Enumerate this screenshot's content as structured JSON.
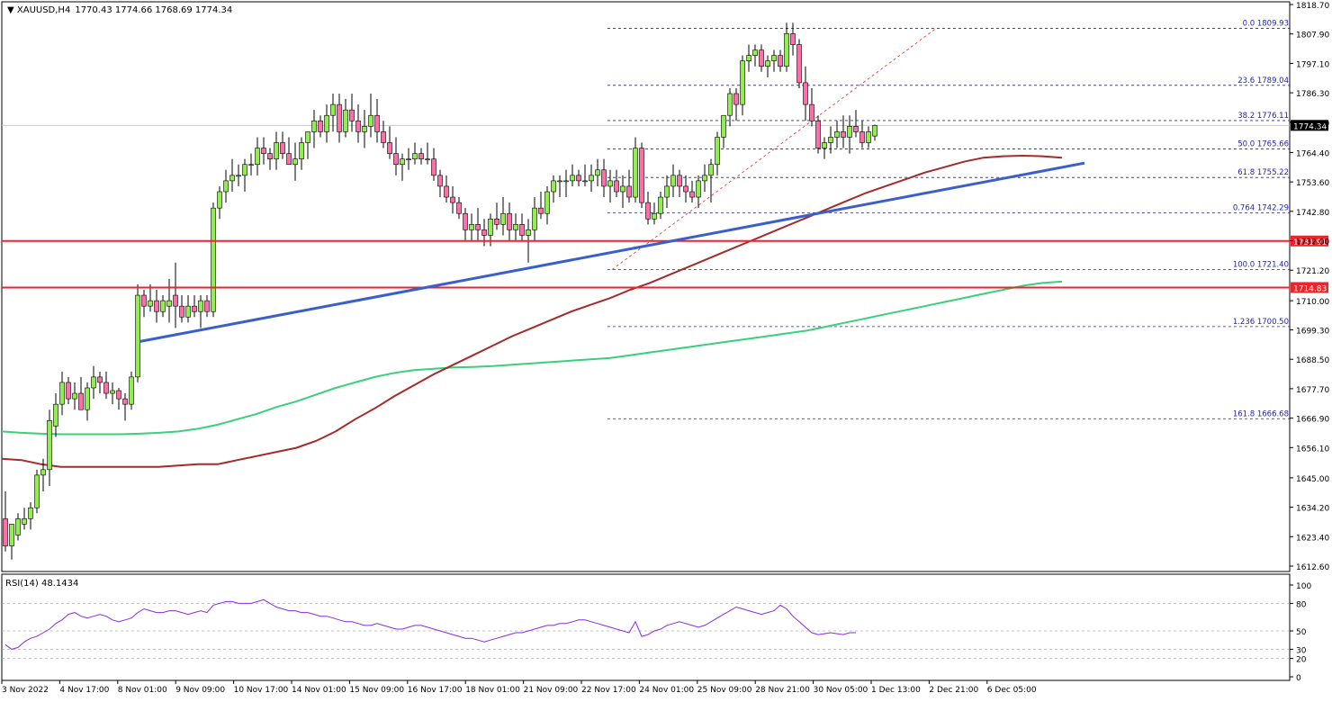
{
  "header": {
    "symbol_tf": "XAUUSD,H4",
    "ohlc": "1770.43 1774.66 1768.69 1774.34"
  },
  "rsi": {
    "label": "RSI(14) 48.1434",
    "scale_labels": [
      "100",
      "80",
      "50",
      "30",
      "20",
      "0"
    ]
  },
  "colors": {
    "bull": "#90ee50",
    "bear": "#ff6ea6",
    "wick": "#000000",
    "ma_fast": "#a52a2a",
    "ma_slow": "#3ad07a",
    "trendline": "#3a5fcd",
    "hline": "#e8262b",
    "fib": "#2424a8",
    "rsi_line": "#8a2be2"
  },
  "chart_data": {
    "type": "candlestick",
    "symbol": "XAUUSD",
    "timeframe": "H4",
    "ylim": [
      1612.6,
      1818.7
    ],
    "y_ticks": [
      "1818.70",
      "1807.90",
      "1797.10",
      "1786.30",
      "1775.50",
      "1764.40",
      "1753.60",
      "1742.80",
      "1732.00",
      "1721.20",
      "1710.00",
      "1699.30",
      "1688.50",
      "1677.70",
      "1666.90",
      "1656.10",
      "1645.00",
      "1634.20",
      "1623.40",
      "1612.60"
    ],
    "x_labels": [
      "3 Nov 2022",
      "4 Nov 17:00",
      "8 Nov 01:00",
      "9 Nov 09:00",
      "10 Nov 17:00",
      "14 Nov 01:00",
      "15 Nov 09:00",
      "16 Nov 17:00",
      "18 Nov 01:00",
      "21 Nov 09:00",
      "22 Nov 17:00",
      "24 Nov 01:00",
      "25 Nov 09:00",
      "28 Nov 21:00",
      "30 Nov 05:00",
      "1 Dec 13:00",
      "2 Dec 21:00",
      "6 Dec 05:00"
    ],
    "current_price": "1774.34",
    "hlines": [
      {
        "price": 1731.91,
        "label": "1731.91"
      },
      {
        "price": 1714.83,
        "label": "1714.83"
      }
    ],
    "fibonacci": [
      {
        "level": "0.0",
        "price": 1809.93,
        "label": "0.0 1809.93"
      },
      {
        "level": "23.6",
        "price": 1789.04,
        "label": "23.6 1789.04"
      },
      {
        "level": "38.2",
        "price": 1776.11,
        "label": "38.2 1776.11"
      },
      {
        "level": "50.0",
        "price": 1765.66,
        "label": "50.0 1765.66"
      },
      {
        "level": "61.8",
        "price": 1755.22,
        "label": "61.8 1755.22"
      },
      {
        "level": "76.4",
        "price": 1742.29,
        "label": "0.764 1742.29"
      },
      {
        "level": "100.0",
        "price": 1721.4,
        "label": "100.0 1721.40"
      },
      {
        "level": "123.6",
        "price": 1700.5,
        "label": "1.236 1700.50"
      },
      {
        "level": "161.8",
        "price": 1666.68,
        "label": "161.8 1666.68"
      }
    ],
    "trendline": {
      "from": [
        0,
        1695.0
      ],
      "to": [
        100,
        1758.0
      ]
    },
    "ma_fast": [
      1652.0,
      1651.5,
      1650.0,
      1649.0,
      1649.0,
      1649.0,
      1649.0,
      1649.0,
      1649.0,
      1649.5,
      1650.0,
      1650.0,
      1651.5,
      1653.0,
      1654.5,
      1656.0,
      1658.5,
      1662.0,
      1666.5,
      1670.5,
      1675.0,
      1679.0,
      1683.0,
      1686.5,
      1690.0,
      1693.5,
      1697.0,
      1700.0,
      1703.0,
      1706.0,
      1708.5,
      1711.0,
      1714.0,
      1716.5,
      1719.5,
      1722.5,
      1725.5,
      1728.5,
      1731.5,
      1734.5,
      1737.5,
      1740.5,
      1743.5,
      1746.5,
      1749.5,
      1752.0,
      1754.5,
      1757.0,
      1759.0,
      1761.0,
      1762.5,
      1763.0,
      1763.2,
      1763.0,
      1762.5
    ],
    "ma_slow": [
      1662.0,
      1661.5,
      1661.2,
      1661.0,
      1661.0,
      1661.0,
      1661.0,
      1661.2,
      1661.5,
      1662.0,
      1663.0,
      1664.5,
      1666.5,
      1668.5,
      1671.0,
      1673.0,
      1675.5,
      1678.0,
      1680.0,
      1682.0,
      1683.5,
      1684.5,
      1685.0,
      1685.5,
      1685.7,
      1686.0,
      1686.5,
      1687.0,
      1687.5,
      1688.0,
      1688.5,
      1689.0,
      1690.0,
      1691.0,
      1692.0,
      1693.0,
      1694.0,
      1695.0,
      1696.0,
      1697.0,
      1698.0,
      1699.0,
      1700.5,
      1702.0,
      1703.5,
      1705.0,
      1706.5,
      1708.0,
      1709.5,
      1711.0,
      1712.5,
      1714.0,
      1715.5,
      1716.5,
      1717.0
    ],
    "candles": [
      [
        1630,
        1640,
        1618,
        1620
      ],
      [
        1620,
        1628,
        1615,
        1628
      ],
      [
        1624,
        1632,
        1622,
        1630
      ],
      [
        1628,
        1634,
        1626,
        1630
      ],
      [
        1630,
        1636,
        1626,
        1634
      ],
      [
        1634,
        1648,
        1632,
        1646
      ],
      [
        1646,
        1652,
        1640,
        1648
      ],
      [
        1648,
        1670,
        1642,
        1666
      ],
      [
        1664,
        1676,
        1660,
        1672
      ],
      [
        1672,
        1684,
        1668,
        1680
      ],
      [
        1680,
        1682,
        1672,
        1674
      ],
      [
        1674,
        1680,
        1670,
        1676
      ],
      [
        1676,
        1682,
        1670,
        1670
      ],
      [
        1670,
        1680,
        1666,
        1678
      ],
      [
        1678,
        1686,
        1674,
        1682
      ],
      [
        1682,
        1684,
        1676,
        1680
      ],
      [
        1680,
        1684,
        1674,
        1676
      ],
      [
        1676,
        1680,
        1672,
        1677
      ],
      [
        1677,
        1678,
        1670,
        1674
      ],
      [
        1674,
        1676,
        1666,
        1672
      ],
      [
        1672,
        1684,
        1670,
        1682
      ],
      [
        1682,
        1716,
        1680,
        1712
      ],
      [
        1712,
        1714,
        1704,
        1708
      ],
      [
        1708,
        1716,
        1706,
        1710
      ],
      [
        1710,
        1714,
        1702,
        1706
      ],
      [
        1706,
        1712,
        1704,
        1710
      ],
      [
        1708,
        1718,
        1702,
        1710
      ],
      [
        1712,
        1724,
        1700,
        1708
      ],
      [
        1708,
        1712,
        1702,
        1704
      ],
      [
        1704,
        1712,
        1702,
        1708
      ],
      [
        1708,
        1712,
        1704,
        1706
      ],
      [
        1706,
        1712,
        1700,
        1710
      ],
      [
        1710,
        1712,
        1704,
        1706
      ],
      [
        1706,
        1746,
        1704,
        1744
      ],
      [
        1744,
        1752,
        1740,
        1750
      ],
      [
        1750,
        1758,
        1746,
        1754
      ],
      [
        1754,
        1762,
        1750,
        1756
      ],
      [
        1756,
        1760,
        1752,
        1756
      ],
      [
        1756,
        1762,
        1750,
        1760
      ],
      [
        1760,
        1764,
        1756,
        1760
      ],
      [
        1760,
        1770,
        1756,
        1766
      ],
      [
        1766,
        1770,
        1760,
        1764
      ],
      [
        1764,
        1766,
        1758,
        1762
      ],
      [
        1762,
        1772,
        1758,
        1768
      ],
      [
        1768,
        1772,
        1762,
        1764
      ],
      [
        1764,
        1770,
        1760,
        1760
      ],
      [
        1760,
        1768,
        1754,
        1762
      ],
      [
        1762,
        1770,
        1758,
        1768
      ],
      [
        1768,
        1772,
        1762,
        1772
      ],
      [
        1772,
        1780,
        1766,
        1776
      ],
      [
        1776,
        1778,
        1770,
        1772
      ],
      [
        1772,
        1782,
        1768,
        1778
      ],
      [
        1778,
        1786,
        1772,
        1782
      ],
      [
        1782,
        1786,
        1768,
        1772
      ],
      [
        1772,
        1784,
        1770,
        1780
      ],
      [
        1780,
        1786,
        1772,
        1776
      ],
      [
        1776,
        1782,
        1768,
        1772
      ],
      [
        1772,
        1780,
        1766,
        1774
      ],
      [
        1774,
        1786,
        1770,
        1778
      ],
      [
        1778,
        1784,
        1768,
        1772
      ],
      [
        1772,
        1776,
        1766,
        1768
      ],
      [
        1768,
        1774,
        1762,
        1764
      ],
      [
        1764,
        1770,
        1756,
        1760
      ],
      [
        1760,
        1764,
        1754,
        1762
      ],
      [
        1762,
        1766,
        1758,
        1762
      ],
      [
        1762,
        1768,
        1760,
        1764
      ],
      [
        1764,
        1766,
        1760,
        1762
      ],
      [
        1762,
        1768,
        1760,
        1762
      ],
      [
        1762,
        1766,
        1754,
        1756
      ],
      [
        1756,
        1758,
        1748,
        1752
      ],
      [
        1752,
        1756,
        1746,
        1748
      ],
      [
        1748,
        1752,
        1742,
        1746
      ],
      [
        1746,
        1748,
        1740,
        1742
      ],
      [
        1742,
        1744,
        1732,
        1736
      ],
      [
        1736,
        1742,
        1732,
        1738
      ],
      [
        1738,
        1744,
        1732,
        1736
      ],
      [
        1736,
        1740,
        1730,
        1734
      ],
      [
        1734,
        1742,
        1730,
        1740
      ],
      [
        1740,
        1746,
        1736,
        1738
      ],
      [
        1738,
        1748,
        1734,
        1742
      ],
      [
        1742,
        1746,
        1732,
        1736
      ],
      [
        1736,
        1742,
        1732,
        1738
      ],
      [
        1738,
        1742,
        1732,
        1734
      ],
      [
        1734,
        1740,
        1724,
        1736
      ],
      [
        1736,
        1748,
        1732,
        1744
      ],
      [
        1744,
        1750,
        1740,
        1742
      ],
      [
        1742,
        1752,
        1738,
        1750
      ],
      [
        1750,
        1756,
        1746,
        1754
      ],
      [
        1754,
        1756,
        1748,
        1754
      ],
      [
        1754,
        1758,
        1748,
        1754
      ],
      [
        1754,
        1760,
        1752,
        1756
      ],
      [
        1756,
        1758,
        1752,
        1754
      ],
      [
        1754,
        1760,
        1752,
        1754
      ],
      [
        1754,
        1760,
        1750,
        1756
      ],
      [
        1756,
        1762,
        1752,
        1758
      ],
      [
        1758,
        1762,
        1748,
        1752
      ],
      [
        1752,
        1758,
        1746,
        1754
      ],
      [
        1754,
        1758,
        1748,
        1750
      ],
      [
        1750,
        1756,
        1744,
        1752
      ],
      [
        1752,
        1758,
        1746,
        1748
      ],
      [
        1748,
        1770,
        1746,
        1766
      ],
      [
        1766,
        1768,
        1744,
        1746
      ],
      [
        1746,
        1750,
        1738,
        1740
      ],
      [
        1740,
        1746,
        1738,
        1742
      ],
      [
        1742,
        1750,
        1740,
        1748
      ],
      [
        1748,
        1756,
        1744,
        1752
      ],
      [
        1752,
        1760,
        1748,
        1756
      ],
      [
        1756,
        1758,
        1748,
        1752
      ],
      [
        1752,
        1756,
        1746,
        1750
      ],
      [
        1750,
        1754,
        1746,
        1748
      ],
      [
        1748,
        1756,
        1744,
        1754
      ],
      [
        1754,
        1760,
        1750,
        1756
      ],
      [
        1756,
        1762,
        1746,
        1760
      ],
      [
        1760,
        1772,
        1756,
        1770
      ],
      [
        1770,
        1778,
        1766,
        1778
      ],
      [
        1778,
        1788,
        1774,
        1786
      ],
      [
        1786,
        1788,
        1776,
        1782
      ],
      [
        1782,
        1800,
        1778,
        1798
      ],
      [
        1798,
        1804,
        1794,
        1800
      ],
      [
        1800,
        1804,
        1796,
        1802
      ],
      [
        1802,
        1804,
        1794,
        1796
      ],
      [
        1796,
        1800,
        1792,
        1798
      ],
      [
        1798,
        1802,
        1794,
        1800
      ],
      [
        1800,
        1802,
        1794,
        1796
      ],
      [
        1796,
        1812,
        1794,
        1808
      ],
      [
        1808,
        1812,
        1800,
        1804
      ],
      [
        1804,
        1806,
        1788,
        1790
      ],
      [
        1790,
        1796,
        1776,
        1782
      ],
      [
        1782,
        1788,
        1774,
        1776
      ],
      [
        1776,
        1778,
        1764,
        1766
      ],
      [
        1766,
        1770,
        1762,
        1768
      ],
      [
        1768,
        1774,
        1764,
        1770
      ],
      [
        1770,
        1776,
        1766,
        1772
      ],
      [
        1772,
        1778,
        1766,
        1770
      ],
      [
        1770,
        1778,
        1764,
        1774
      ],
      [
        1774,
        1780,
        1770,
        1772
      ],
      [
        1772,
        1776,
        1766,
        1768
      ],
      [
        1768,
        1774,
        1766,
        1772
      ],
      [
        1770.43,
        1774.66,
        1768.69,
        1774.34
      ]
    ],
    "rsi_values": [
      35,
      30,
      32,
      38,
      42,
      44,
      48,
      52,
      58,
      62,
      68,
      70,
      66,
      64,
      66,
      68,
      66,
      62,
      60,
      62,
      64,
      70,
      74,
      72,
      70,
      70,
      72,
      72,
      70,
      68,
      70,
      72,
      70,
      78,
      80,
      82,
      82,
      80,
      80,
      80,
      82,
      84,
      80,
      76,
      74,
      72,
      72,
      70,
      70,
      68,
      66,
      66,
      64,
      62,
      60,
      60,
      58,
      56,
      56,
      58,
      56,
      54,
      52,
      52,
      54,
      56,
      56,
      54,
      52,
      50,
      48,
      46,
      44,
      42,
      42,
      40,
      38,
      40,
      42,
      44,
      46,
      48,
      48,
      50,
      52,
      54,
      56,
      56,
      58,
      58,
      60,
      62,
      62,
      60,
      58,
      56,
      54,
      52,
      50,
      48,
      60,
      44,
      46,
      50,
      52,
      56,
      58,
      60,
      58,
      56,
      54,
      56,
      60,
      64,
      68,
      72,
      76,
      74,
      72,
      70,
      68,
      70,
      72,
      78,
      74,
      66,
      60,
      54,
      48,
      46,
      47,
      48,
      47,
      46,
      48,
      48
    ],
    "rsi_ylim": [
      0,
      100
    ]
  }
}
